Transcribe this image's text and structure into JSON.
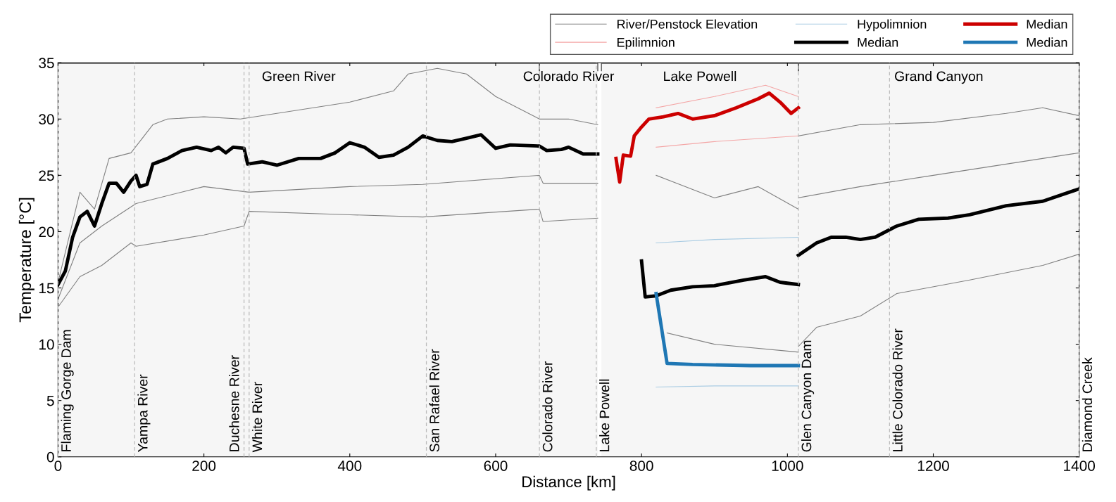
{
  "chart_data": {
    "type": "line",
    "xlabel": "Distance [km]",
    "ylabel": "Temperature [°C]",
    "xlim": [
      0,
      1400
    ],
    "xticks": [
      0,
      200,
      400,
      600,
      800,
      1000,
      1200,
      1400
    ],
    "ylim": [
      0,
      35
    ],
    "yticks": [
      0,
      5,
      10,
      15,
      20,
      25,
      30,
      35
    ],
    "grid": false,
    "legend": "top right",
    "marker": "none",
    "line_style": "solid",
    "ref_lines": [
      {
        "axis": "x",
        "value": 0,
        "label": "Flaming Gorge Dam"
      },
      {
        "axis": "x",
        "value": 105,
        "label": "Yampa River"
      },
      {
        "axis": "x",
        "value": 255,
        "label": "Duchesne River"
      },
      {
        "axis": "x",
        "value": 262,
        "label": "White River"
      },
      {
        "axis": "x",
        "value": 505,
        "label": "San Rafael River"
      },
      {
        "axis": "x",
        "value": 660,
        "label": "Colorado River"
      },
      {
        "axis": "x",
        "value": 738,
        "label": "Lake Powell"
      },
      {
        "axis": "x",
        "value": 1015,
        "label": "Glen Canyon Dam"
      },
      {
        "axis": "x",
        "value": 1140,
        "label": "Little Colorado River"
      },
      {
        "axis": "x",
        "value": 1400,
        "label": "Diamond Creek"
      }
    ],
    "bands": [
      {
        "axis": "x",
        "from": 0,
        "to": 660,
        "label": "Green River"
      },
      {
        "axis": "x",
        "from": 660,
        "to": 740,
        "label": "Colorado River"
      },
      {
        "axis": "x",
        "from": 745,
        "to": 1015,
        "label": "Lake Powell"
      },
      {
        "axis": "x",
        "from": 1015,
        "to": 1400,
        "label": "Grand Canyon"
      }
    ],
    "series": [
      {
        "name": "River/Penstock Elevation",
        "color": "#808080",
        "x": [
          0,
          30,
          50,
          70,
          100,
          130,
          150,
          200,
          250,
          300,
          400,
          460,
          480,
          520,
          560,
          600,
          660,
          700,
          740
        ],
        "values": [
          15.5,
          23.5,
          22,
          26.5,
          27,
          29.5,
          30,
          30.2,
          30,
          30.5,
          31.5,
          32.5,
          34,
          34.5,
          34,
          32,
          30,
          30,
          29.5
        ]
      },
      {
        "color": "#808080",
        "x": [
          0,
          30,
          60,
          100,
          107,
          200,
          255,
          262,
          400,
          500,
          660,
          665,
          740
        ],
        "values": [
          13.3,
          16,
          17,
          19,
          18.7,
          19.7,
          20.5,
          21.8,
          21.5,
          21.3,
          22,
          20.9,
          21.2
        ]
      },
      {
        "color": "#808080",
        "x": [
          0,
          30,
          60,
          107,
          200,
          262,
          400,
          500,
          660,
          665,
          740
        ],
        "values": [
          14,
          19,
          20.5,
          22.5,
          24,
          23.5,
          24,
          24.2,
          25,
          24.3,
          24.3
        ]
      },
      {
        "color": "#808080",
        "x": [
          1015,
          1100,
          1200,
          1300,
          1350,
          1400
        ],
        "values": [
          28.5,
          29.5,
          29.7,
          30.5,
          31,
          30.3
        ]
      },
      {
        "color": "#808080",
        "x": [
          1015,
          1040,
          1100,
          1150,
          1250,
          1350,
          1400
        ],
        "values": [
          9.8,
          11.5,
          12.5,
          14.5,
          15.7,
          17,
          18
        ]
      },
      {
        "color": "#808080",
        "x": [
          1015,
          1100,
          1200,
          1300,
          1400
        ],
        "values": [
          23,
          24,
          25,
          26,
          27
        ]
      },
      {
        "color": "#808080",
        "x": [
          835,
          900,
          1015
        ],
        "values": [
          11,
          10,
          9.3
        ]
      },
      {
        "color": "#808080",
        "x": [
          820,
          900,
          960,
          1015
        ],
        "values": [
          25,
          23,
          24,
          22
        ]
      },
      {
        "name": "Epilimnion",
        "color": "#f4a6a6",
        "x": [
          820,
          900,
          970,
          1015
        ],
        "values": [
          31,
          32,
          33,
          32
        ]
      },
      {
        "color": "#f4a6a6",
        "x": [
          820,
          900,
          1015
        ],
        "values": [
          27.5,
          28,
          28.5
        ]
      },
      {
        "name": "Hypolimnion",
        "color": "#a9cce3",
        "x": [
          820,
          900,
          1015
        ],
        "values": [
          19,
          19.3,
          19.5
        ]
      },
      {
        "color": "#a9cce3",
        "x": [
          820,
          900,
          1015
        ],
        "values": [
          6.2,
          6.3,
          6.3
        ]
      },
      {
        "name": "Median",
        "color": "#000000",
        "x": [
          0,
          10,
          20,
          30,
          40,
          50,
          60,
          70,
          80,
          90,
          100,
          107,
          112,
          122,
          130,
          150,
          170,
          190,
          210,
          220,
          230,
          240,
          255,
          260,
          280,
          300,
          330,
          360,
          380,
          400,
          420,
          440,
          460,
          480,
          500,
          520,
          540,
          560,
          580,
          600,
          620,
          660,
          670,
          690,
          700,
          720,
          740
        ],
        "values": [
          15.3,
          16.5,
          19.5,
          21.3,
          21.8,
          20.5,
          22.5,
          24.3,
          24.3,
          23.5,
          24.5,
          25,
          24,
          24.2,
          26,
          26.5,
          27.2,
          27.5,
          27.2,
          27.5,
          27,
          27.5,
          27.4,
          26,
          26.2,
          25.9,
          26.5,
          26.5,
          27,
          27.9,
          27.5,
          26.6,
          26.8,
          27.5,
          28.5,
          28.1,
          28,
          28.3,
          28.6,
          27.4,
          27.7,
          27.6,
          27.2,
          27.3,
          27.5,
          26.9,
          26.9
        ]
      },
      {
        "color": "#000000",
        "x": [
          800,
          805,
          820,
          840,
          870,
          900,
          940,
          970,
          990,
          1015
        ],
        "values": [
          17.4,
          14.2,
          14.3,
          14.8,
          15.1,
          15.2,
          15.7,
          16,
          15.5,
          15.3
        ]
      },
      {
        "color": "#000000",
        "x": [
          1015,
          1040,
          1060,
          1080,
          1100,
          1120,
          1150,
          1180,
          1220,
          1250,
          1300,
          1350,
          1400
        ],
        "values": [
          17.9,
          19,
          19.5,
          19.5,
          19.3,
          19.5,
          20.5,
          21.1,
          21.2,
          21.5,
          22.3,
          22.7,
          23.8
        ]
      },
      {
        "name": "Median",
        "color": "#cc0000",
        "x": [
          765,
          770,
          775,
          785,
          790,
          800,
          810,
          830,
          850,
          870,
          900,
          930,
          960,
          975,
          990,
          1005,
          1015
        ],
        "values": [
          26.5,
          24.4,
          26.8,
          26.7,
          28.5,
          29.3,
          30,
          30.2,
          30.5,
          30,
          30.3,
          31,
          31.8,
          32.3,
          31.5,
          30.5,
          31
        ]
      },
      {
        "name": "Median",
        "color": "#1f77b4",
        "x": [
          820,
          835,
          870,
          950,
          1015
        ],
        "values": [
          14.5,
          8.3,
          8.2,
          8.1,
          8.1
        ]
      }
    ]
  }
}
